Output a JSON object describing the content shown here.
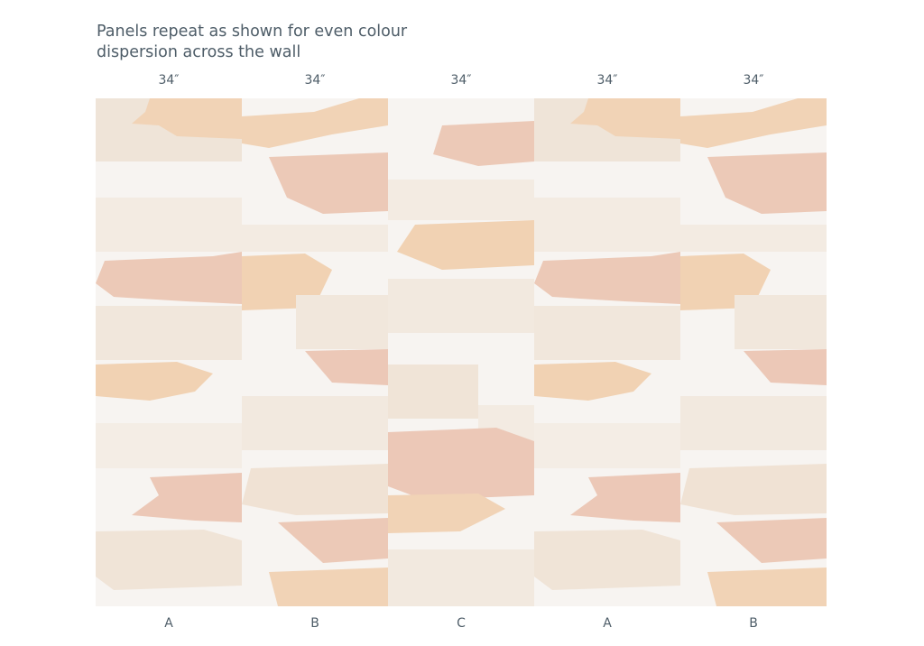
{
  "heading": {
    "lines": [
      "Panels repeat as shown for even colour",
      "dispersion across the wall"
    ]
  },
  "panels": [
    {
      "width": "34″",
      "label": "A"
    },
    {
      "width": "34″",
      "label": "B"
    },
    {
      "width": "34″",
      "label": "C"
    },
    {
      "width": "34″",
      "label": "A"
    },
    {
      "width": "34″",
      "label": "B"
    }
  ]
}
